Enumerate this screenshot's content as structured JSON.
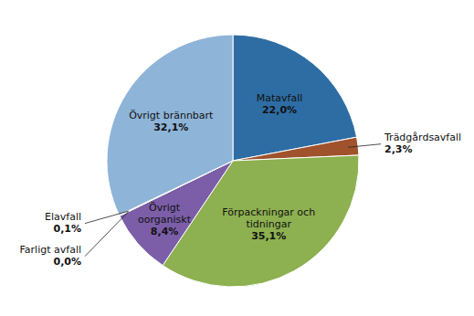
{
  "chart_data": {
    "type": "pie",
    "categories": [
      "Matavfall",
      "Trädgårdsavfall",
      "Förpackningar och\ntidningar",
      "Övrigt\noorganiskt",
      "Farligt avfall",
      "Elavfall",
      "Övrigt brännbart"
    ],
    "values": [
      22.0,
      2.3,
      35.1,
      8.4,
      0.0,
      0.1,
      32.1
    ],
    "value_labels": [
      "22,0%",
      "2,3%",
      "35,1%",
      "8,4%",
      "0,0%",
      "0,1%",
      "32,1%"
    ],
    "colors": [
      "#2E6DA4",
      "#A0522D",
      "#8DB050",
      "#7B5EA7",
      "#D2691E",
      "#FFA500",
      "#8EB4D8"
    ],
    "data_labels": true
  }
}
